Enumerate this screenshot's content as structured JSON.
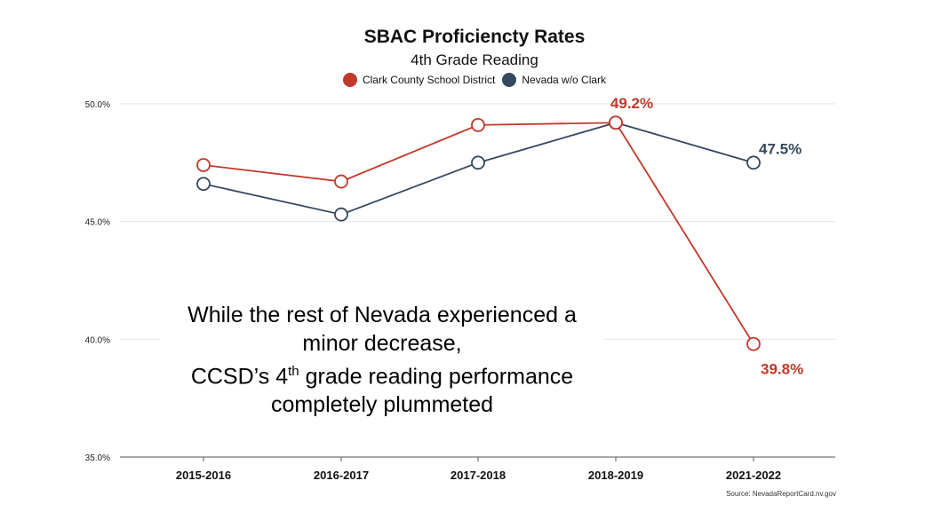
{
  "chart_data": {
    "type": "line",
    "title": "SBAC Proficiencty Rates",
    "subtitle": "4th Grade Reading",
    "categories": [
      "2015-2016",
      "2016-2017",
      "2017-2018",
      "2018-2019",
      "2021-2022"
    ],
    "series": [
      {
        "name": "Clark County School District",
        "color": "#c0392b",
        "values": [
          47.4,
          46.7,
          49.1,
          49.2,
          39.8
        ]
      },
      {
        "name": "Nevada w/o Clark",
        "color": "#34495e",
        "values": [
          46.6,
          45.3,
          47.5,
          49.2,
          47.5
        ]
      }
    ],
    "point_labels": [
      {
        "series": 0,
        "index": 3,
        "text": "49.2%"
      },
      {
        "series": 1,
        "index": 4,
        "text": "47.5%"
      },
      {
        "series": 0,
        "index": 4,
        "text": "39.8%"
      }
    ],
    "yticks": [
      "35.0%",
      "40.0%",
      "45.0%",
      "50.0%"
    ],
    "ytick_values": [
      35,
      40,
      45,
      50
    ],
    "ylim": [
      35,
      50
    ],
    "grid": true,
    "legend_position": "top-center",
    "annotation": {
      "line1": "While the rest of Nevada experienced a",
      "line2": "minor decrease,",
      "line3_pre": "CCSD’s 4",
      "line3_sup": "th",
      "line3_post": " grade reading performance",
      "line4": "completely plummeted"
    },
    "source": "Source: NevadaReportCard.nv.gov"
  }
}
